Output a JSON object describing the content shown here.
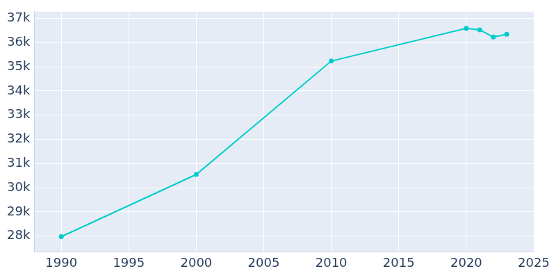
{
  "chart_data": {
    "type": "line",
    "x": [
      1990,
      2000,
      2010,
      2020,
      2021,
      2022,
      2023
    ],
    "values": [
      27980,
      30550,
      35240,
      36590,
      36530,
      36230,
      36350
    ],
    "color": "#00cccc",
    "marker": "circle",
    "xlim": [
      1988,
      2025
    ],
    "xticks": [
      1990,
      1995,
      2000,
      2005,
      2010,
      2015,
      2020,
      2025
    ],
    "ylim": [
      27350,
      37280
    ],
    "yticks": [
      {
        "value": 28000,
        "label": "28k"
      },
      {
        "value": 29000,
        "label": "29k"
      },
      {
        "value": 30000,
        "label": "30k"
      },
      {
        "value": 31000,
        "label": "31k"
      },
      {
        "value": 32000,
        "label": "32k"
      },
      {
        "value": 33000,
        "label": "33k"
      },
      {
        "value": 34000,
        "label": "34k"
      },
      {
        "value": 35000,
        "label": "35k"
      },
      {
        "value": 36000,
        "label": "36k"
      },
      {
        "value": 37000,
        "label": "37k"
      }
    ],
    "grid": true
  }
}
